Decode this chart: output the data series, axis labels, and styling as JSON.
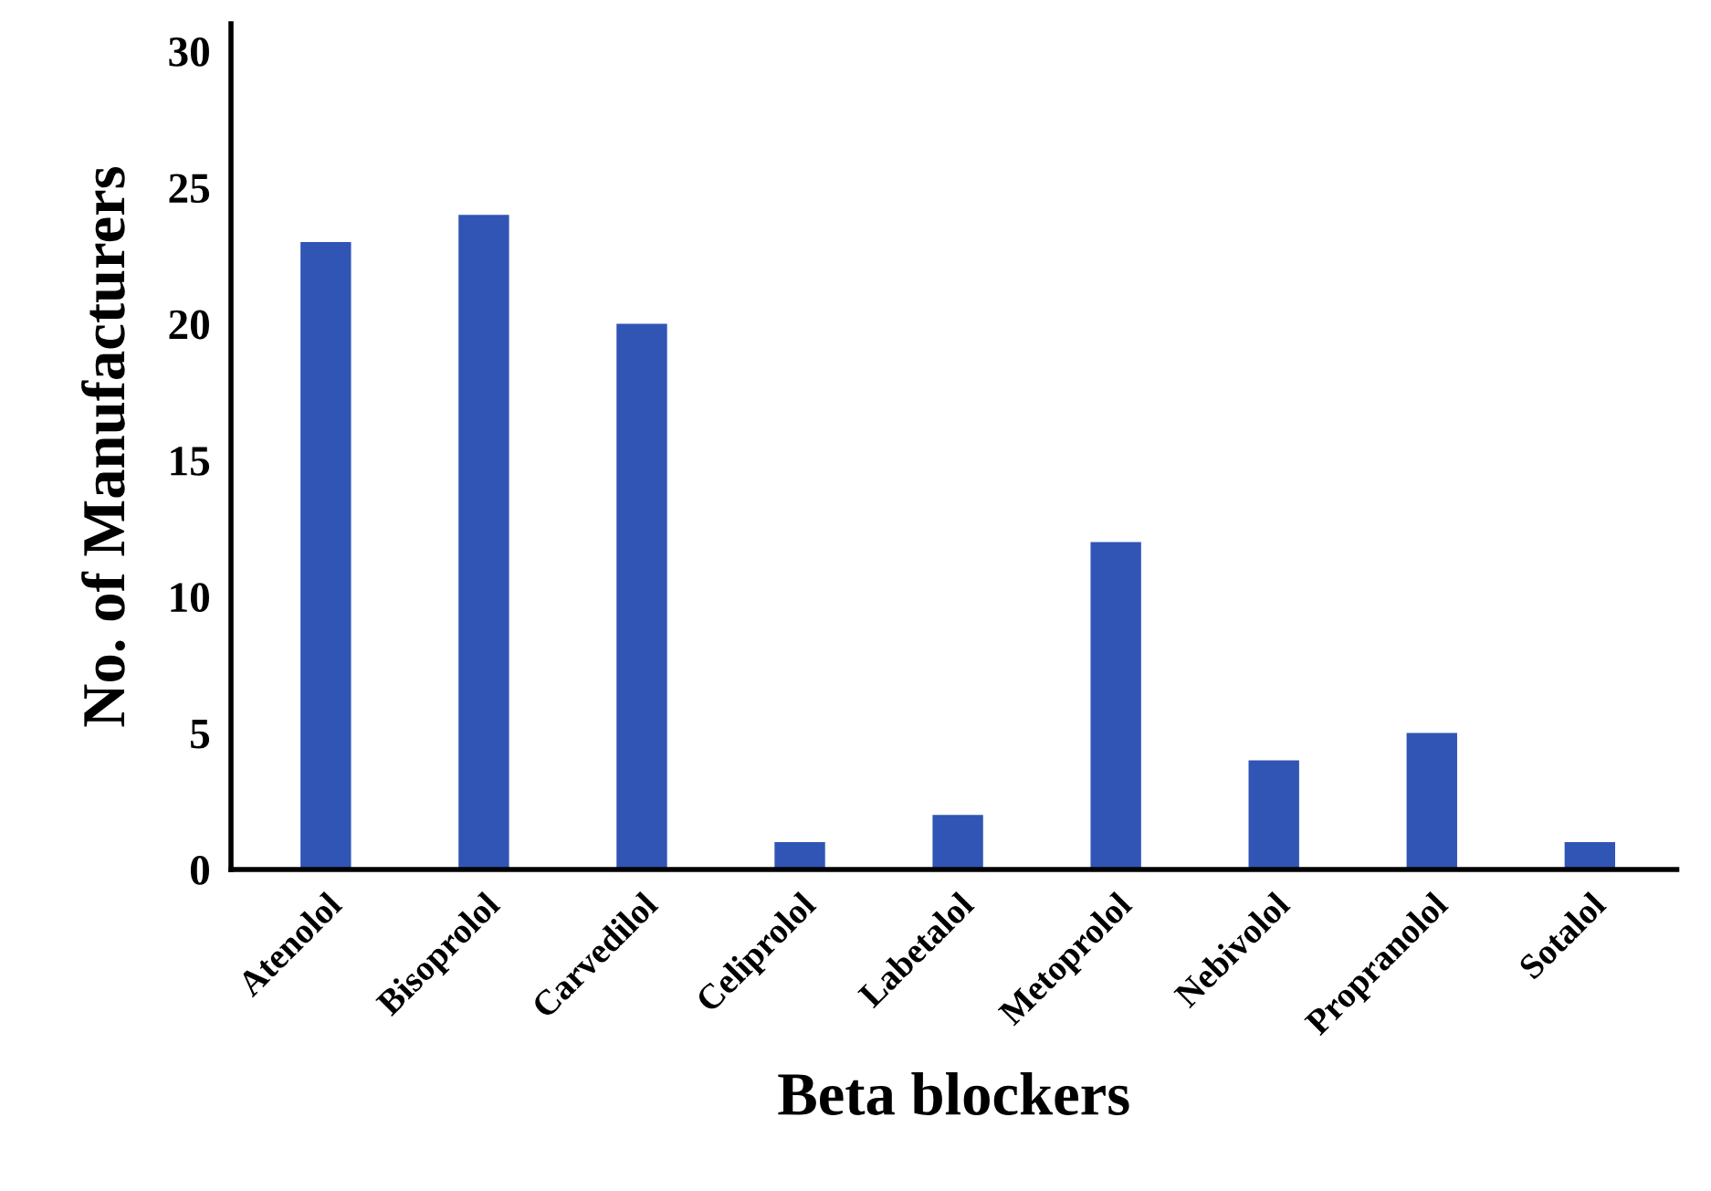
{
  "chart_data": {
    "type": "bar",
    "xlabel": "Beta blockers",
    "ylabel": "No. of Manufacturers",
    "categories": [
      "Atenolol",
      "Bisoprolol",
      "Carvedilol",
      "Celiprolol",
      "Labetalol",
      "Metoprolol",
      "Nebivolol",
      "Propranolol",
      "Sotalol"
    ],
    "values": [
      23,
      24,
      20,
      1,
      2,
      12,
      4,
      5,
      1
    ],
    "color": "#3155b5",
    "ylim": [
      0,
      31
    ],
    "yticks": [
      0,
      5,
      10,
      15,
      20,
      25,
      30
    ],
    "grid": false,
    "legend": false
  }
}
